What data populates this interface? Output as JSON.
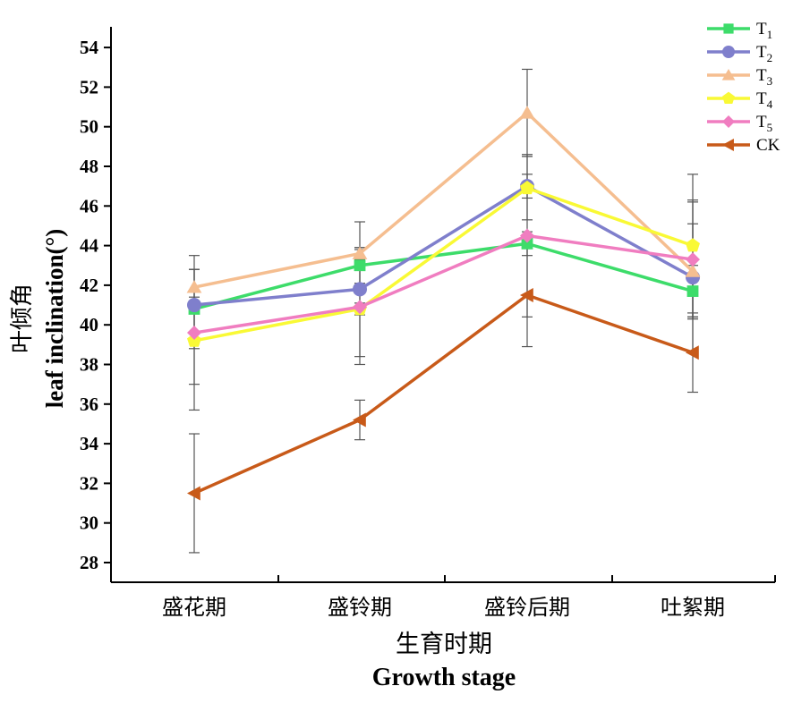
{
  "chart_data": {
    "type": "line",
    "xlabel_cn": "生育时期",
    "xlabel_en": "Growth stage",
    "ylabel_cn": "叶倾角",
    "ylabel_en": "leaf inclination(°)",
    "categories": [
      "盛花期",
      "盛铃期",
      "盛铃后期",
      "吐絮期"
    ],
    "ylim": [
      27,
      54
    ],
    "yticks": [
      28,
      30,
      32,
      34,
      36,
      38,
      40,
      42,
      44,
      46,
      48,
      50,
      52,
      54
    ],
    "legend_position": "top-right",
    "grid": false,
    "series": [
      {
        "name": "T",
        "sub": "1",
        "marker": "square",
        "color": "#3ddc6a",
        "values": [
          40.8,
          43.0,
          44.1,
          41.7
        ],
        "errors": [
          2.0,
          0.9,
          0.6,
          1.3
        ]
      },
      {
        "name": "T",
        "sub": "2",
        "marker": "circle",
        "color": "#7f7fcc",
        "values": [
          41.0,
          41.8,
          47.0,
          42.4
        ],
        "errors": [
          1.8,
          3.4,
          0.6,
          3.8
        ]
      },
      {
        "name": "T",
        "sub": "3",
        "marker": "triangle-up",
        "color": "#f5be90",
        "values": [
          41.9,
          43.6,
          50.7,
          42.7
        ],
        "errors": [
          0.9,
          0.3,
          2.2,
          2.4
        ]
      },
      {
        "name": "T",
        "sub": "4",
        "marker": "pentagon",
        "color": "#f9f935",
        "values": [
          39.2,
          40.8,
          46.9,
          44.0
        ],
        "errors": [
          2.2,
          0.3,
          1.6,
          3.6
        ]
      },
      {
        "name": "T",
        "sub": "5",
        "marker": "diamond",
        "color": "#f07dc0",
        "values": [
          39.6,
          40.9,
          44.5,
          43.3
        ],
        "errors": [
          3.9,
          2.9,
          4.1,
          3.0
        ]
      },
      {
        "name": "CK",
        "sub": "",
        "marker": "triangle-left",
        "color": "#c85a19",
        "values": [
          31.5,
          35.2,
          41.5,
          38.6
        ],
        "errors": [
          3.0,
          1.0,
          2.6,
          2.0
        ]
      }
    ]
  }
}
